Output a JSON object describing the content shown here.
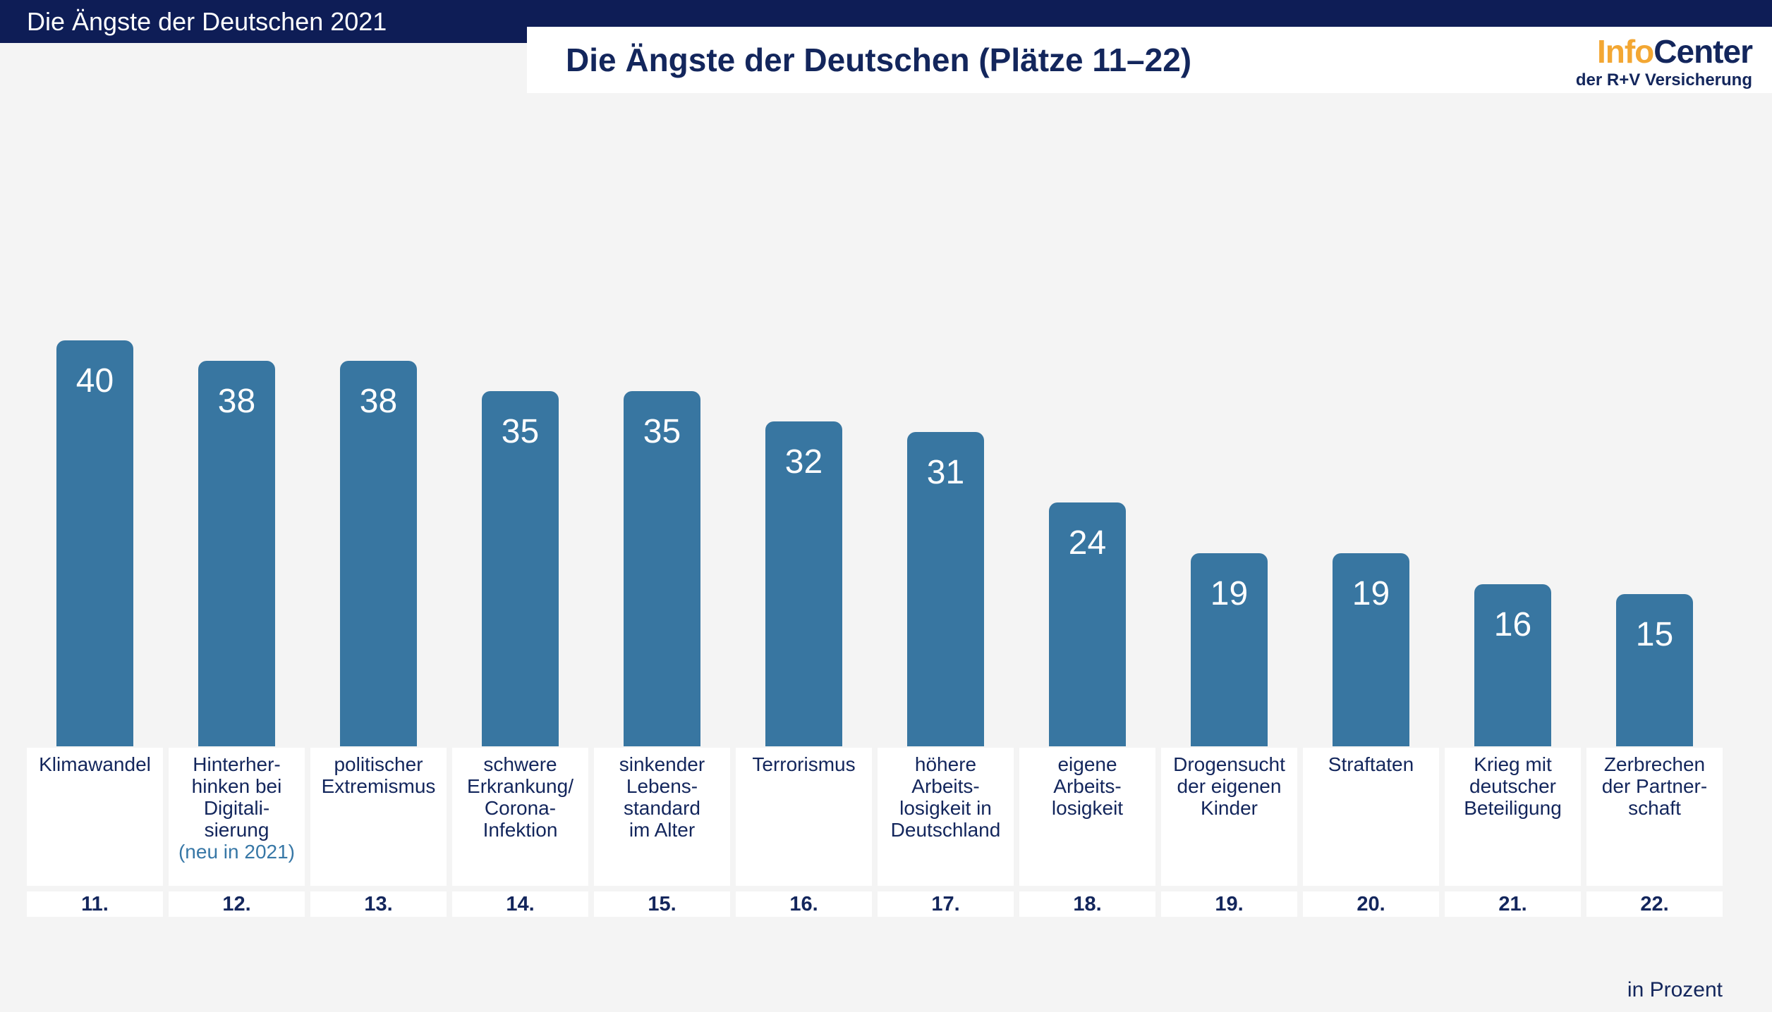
{
  "header": {
    "bar_title": "Die Ängste der Deutschen 2021"
  },
  "title_panel": {
    "title": "Die Ängste der Deutschen (Plätze 11–22)"
  },
  "logo": {
    "name_accent": "Info",
    "name_rest": "Center",
    "subtitle": "der R+V Versicherung"
  },
  "footer": {
    "unit_label": "in Prozent"
  },
  "colors": {
    "navy_band": "#0e1d56",
    "text_navy": "#13265c",
    "bar_blue": "#3876a1",
    "note_blue": "#3777a6",
    "logo_orange": "#f3a733",
    "background": "#f4f4f4",
    "card_white": "#ffffff"
  },
  "chart_data": {
    "type": "bar",
    "title": "Die Ängste der Deutschen (Plätze 11–22)",
    "subtitle": "Die Ängste der Deutschen 2021",
    "unit": "Prozent",
    "ylim": [
      0,
      40
    ],
    "grid": false,
    "legend": false,
    "categories": [
      "Klimawandel",
      "Hinterherhinken bei Digitalisierung",
      "politischer Extremismus",
      "schwere Erkrankung/Corona-Infektion",
      "sinkender Lebensstandard im Alter",
      "Terrorismus",
      "höhere Arbeitslosigkeit in Deutschland",
      "eigene Arbeitslosigkeit",
      "Drogensucht der eigenen Kinder",
      "Straftaten",
      "Krieg mit deutscher Beteiligung",
      "Zerbrechen der Partnerschaft"
    ],
    "values": [
      40,
      38,
      38,
      35,
      35,
      32,
      31,
      24,
      19,
      19,
      16,
      15
    ],
    "columns": [
      {
        "rank": "11.",
        "value": 40,
        "label": "Klimawandel",
        "note": ""
      },
      {
        "rank": "12.",
        "value": 38,
        "label": "Hinterher-\nhinken bei\nDigitali-\nsierung",
        "note": "(neu in 2021)"
      },
      {
        "rank": "13.",
        "value": 38,
        "label": "politischer\nExtremismus",
        "note": ""
      },
      {
        "rank": "14.",
        "value": 35,
        "label": "schwere\nErkrankung/\nCorona-\nInfektion",
        "note": ""
      },
      {
        "rank": "15.",
        "value": 35,
        "label": "sinkender\nLebens-\nstandard\nim Alter",
        "note": ""
      },
      {
        "rank": "16.",
        "value": 32,
        "label": "Terrorismus",
        "note": ""
      },
      {
        "rank": "17.",
        "value": 31,
        "label": "höhere\nArbeits-\nlosigkeit in\nDeutschland",
        "note": ""
      },
      {
        "rank": "18.",
        "value": 24,
        "label": "eigene\nArbeits-\nlosigkeit",
        "note": ""
      },
      {
        "rank": "19.",
        "value": 19,
        "label": "Drogensucht\nder eigenen\nKinder",
        "note": ""
      },
      {
        "rank": "20.",
        "value": 19,
        "label": "Straftaten",
        "note": ""
      },
      {
        "rank": "21.",
        "value": 16,
        "label": "Krieg mit\ndeutscher\nBeteiligung",
        "note": ""
      },
      {
        "rank": "22.",
        "value": 15,
        "label": "Zerbrechen\nder Partner-\nschaft",
        "note": ""
      }
    ]
  }
}
